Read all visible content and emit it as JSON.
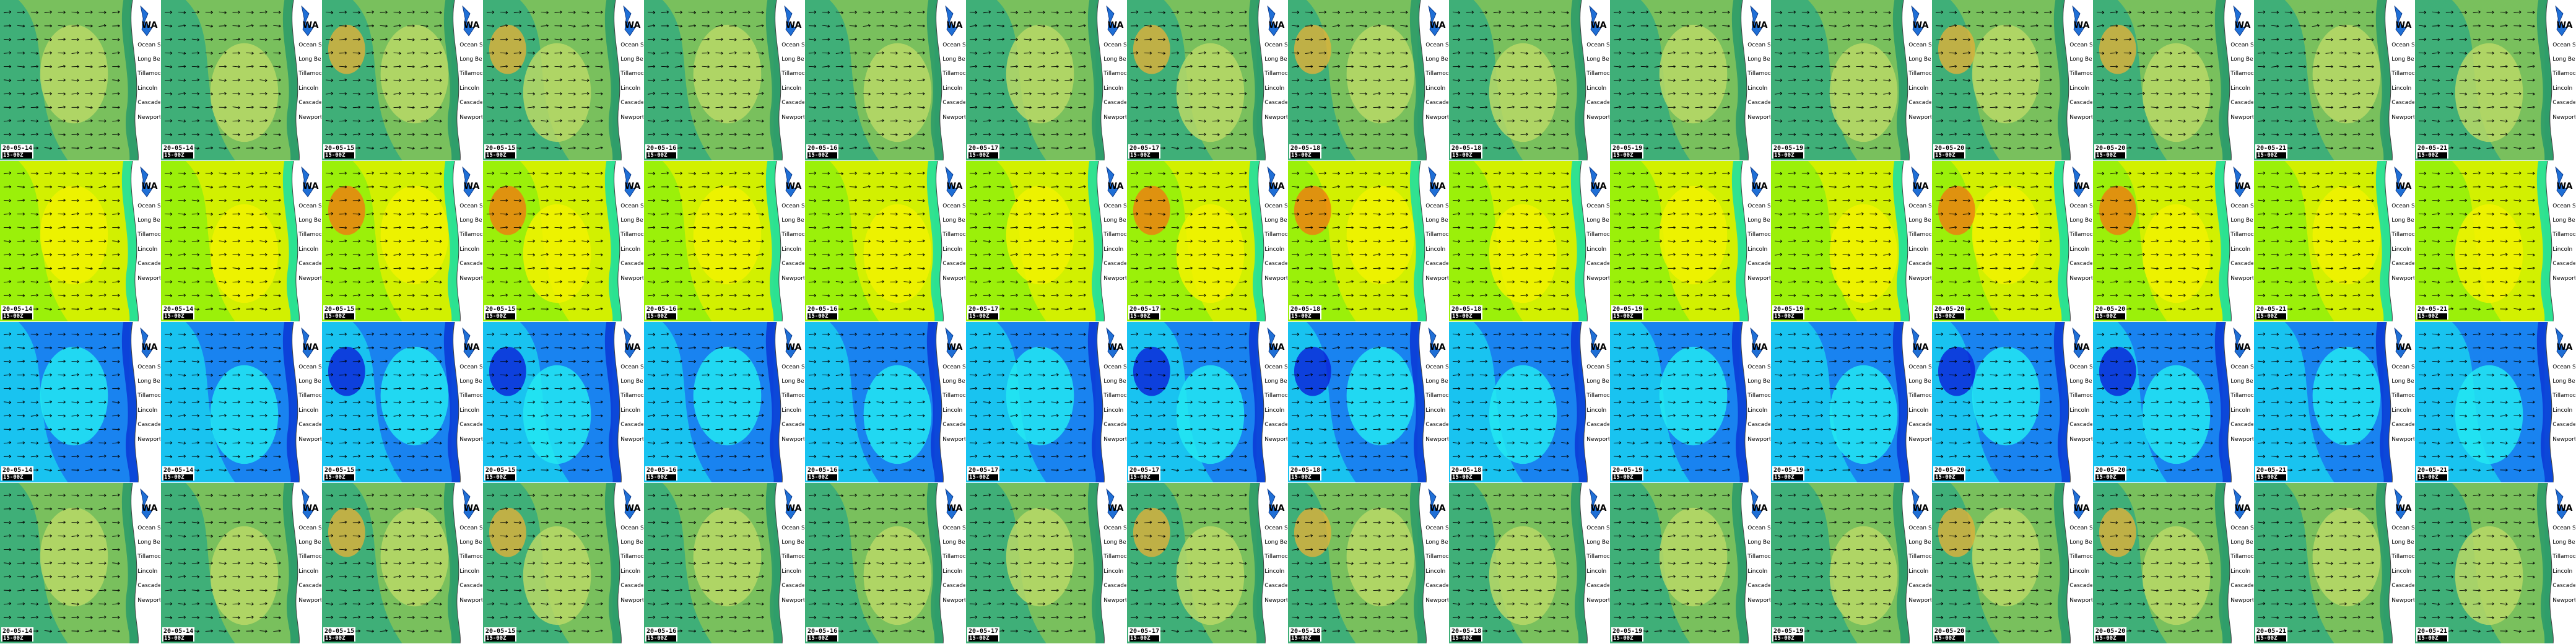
{
  "layout": {
    "rows": 4,
    "cols": 16
  },
  "rows": [
    {
      "id": "row-1",
      "palette": "green",
      "frames": [
        {
          "date": "20-05-14",
          "run": "15-00Z"
        },
        {
          "date": "20-05-14",
          "run": "15-00Z"
        },
        {
          "date": "20-05-15",
          "run": "15-00Z"
        },
        {
          "date": "20-05-15",
          "run": "15-00Z"
        },
        {
          "date": "20-05-16",
          "run": "15-00Z"
        },
        {
          "date": "20-05-16",
          "run": "15-00Z"
        },
        {
          "date": "20-05-17",
          "run": "15-00Z"
        },
        {
          "date": "20-05-17",
          "run": "15-00Z"
        },
        {
          "date": "20-05-18",
          "run": "15-00Z"
        },
        {
          "date": "20-05-18",
          "run": "15-00Z"
        },
        {
          "date": "20-05-19",
          "run": "15-00Z"
        },
        {
          "date": "20-05-19",
          "run": "15-00Z"
        },
        {
          "date": "20-05-20",
          "run": "15-00Z"
        },
        {
          "date": "20-05-20",
          "run": "15-00Z"
        },
        {
          "date": "20-05-21",
          "run": "15-00Z"
        },
        {
          "date": "20-05-21",
          "run": "15-00Z"
        }
      ]
    },
    {
      "id": "row-2",
      "palette": "warm",
      "frames": [
        {
          "date": "20-05-14",
          "run": "15-00Z"
        },
        {
          "date": "20-05-14",
          "run": "15-00Z"
        },
        {
          "date": "20-05-15",
          "run": "15-00Z"
        },
        {
          "date": "20-05-15",
          "run": "15-00Z"
        },
        {
          "date": "20-05-16",
          "run": "15-00Z"
        },
        {
          "date": "20-05-16",
          "run": "15-00Z"
        },
        {
          "date": "20-05-17",
          "run": "15-00Z"
        },
        {
          "date": "20-05-17",
          "run": "15-00Z"
        },
        {
          "date": "20-05-18",
          "run": "15-00Z"
        },
        {
          "date": "20-05-18",
          "run": "15-00Z"
        },
        {
          "date": "20-05-19",
          "run": "15-00Z"
        },
        {
          "date": "20-05-19",
          "run": "15-00Z"
        },
        {
          "date": "20-05-20",
          "run": "15-00Z"
        },
        {
          "date": "20-05-20",
          "run": "15-00Z"
        },
        {
          "date": "20-05-21",
          "run": "15-00Z"
        },
        {
          "date": "20-05-21",
          "run": "15-00Z"
        }
      ]
    },
    {
      "id": "row-3",
      "palette": "blue",
      "frames": [
        {
          "date": "20-05-14",
          "run": "15-00Z"
        },
        {
          "date": "20-05-14",
          "run": "15-00Z"
        },
        {
          "date": "20-05-15",
          "run": "15-00Z"
        },
        {
          "date": "20-05-15",
          "run": "15-00Z"
        },
        {
          "date": "20-05-16",
          "run": "15-00Z"
        },
        {
          "date": "20-05-16",
          "run": "15-00Z"
        },
        {
          "date": "20-05-17",
          "run": "15-00Z"
        },
        {
          "date": "20-05-17",
          "run": "15-00Z"
        },
        {
          "date": "20-05-18",
          "run": "15-00Z"
        },
        {
          "date": "20-05-18",
          "run": "15-00Z"
        },
        {
          "date": "20-05-19",
          "run": "15-00Z"
        },
        {
          "date": "20-05-19",
          "run": "15-00Z"
        },
        {
          "date": "20-05-20",
          "run": "15-00Z"
        },
        {
          "date": "20-05-20",
          "run": "15-00Z"
        },
        {
          "date": "20-05-21",
          "run": "15-00Z"
        },
        {
          "date": "20-05-21",
          "run": "15-00Z"
        }
      ]
    },
    {
      "id": "row-4",
      "palette": "green",
      "frames": [
        {
          "date": "20-05-14",
          "run": "15-00Z"
        },
        {
          "date": "20-05-14",
          "run": "15-00Z"
        },
        {
          "date": "20-05-15",
          "run": "15-00Z"
        },
        {
          "date": "20-05-15",
          "run": "15-00Z"
        },
        {
          "date": "20-05-16",
          "run": "15-00Z"
        },
        {
          "date": "20-05-16",
          "run": "15-00Z"
        },
        {
          "date": "20-05-17",
          "run": "15-00Z"
        },
        {
          "date": "20-05-17",
          "run": "15-00Z"
        },
        {
          "date": "20-05-18",
          "run": "15-00Z"
        },
        {
          "date": "20-05-18",
          "run": "15-00Z"
        },
        {
          "date": "20-05-19",
          "run": "15-00Z"
        },
        {
          "date": "20-05-19",
          "run": "15-00Z"
        },
        {
          "date": "20-05-20",
          "run": "15-00Z"
        },
        {
          "date": "20-05-20",
          "run": "15-00Z"
        },
        {
          "date": "20-05-21",
          "run": "15-00Z"
        },
        {
          "date": "20-05-21",
          "run": "15-00Z"
        }
      ]
    }
  ],
  "map_labels": {
    "state": "WA",
    "places": [
      "Ocean Sh",
      "Long Beac",
      "Tillamook",
      "Lincoln",
      "Cascade H",
      "Newport"
    ]
  },
  "palettes": {
    "green": {
      "base": "#3faf78",
      "mid": "#7fc25a",
      "light": "#b9d866",
      "hot": "#e0b03a",
      "coast": "#2e9c68"
    },
    "warm": {
      "base": "#9bf00a",
      "mid": "#d8f000",
      "light": "#f2f200",
      "hot": "#f07a10",
      "coast": "#1fe0a0"
    },
    "blue": {
      "base": "#19c3f0",
      "mid": "#1a7cf0",
      "light": "#23e8f2",
      "hot": "#0a1fd8",
      "coast": "#0b3bd6"
    }
  }
}
